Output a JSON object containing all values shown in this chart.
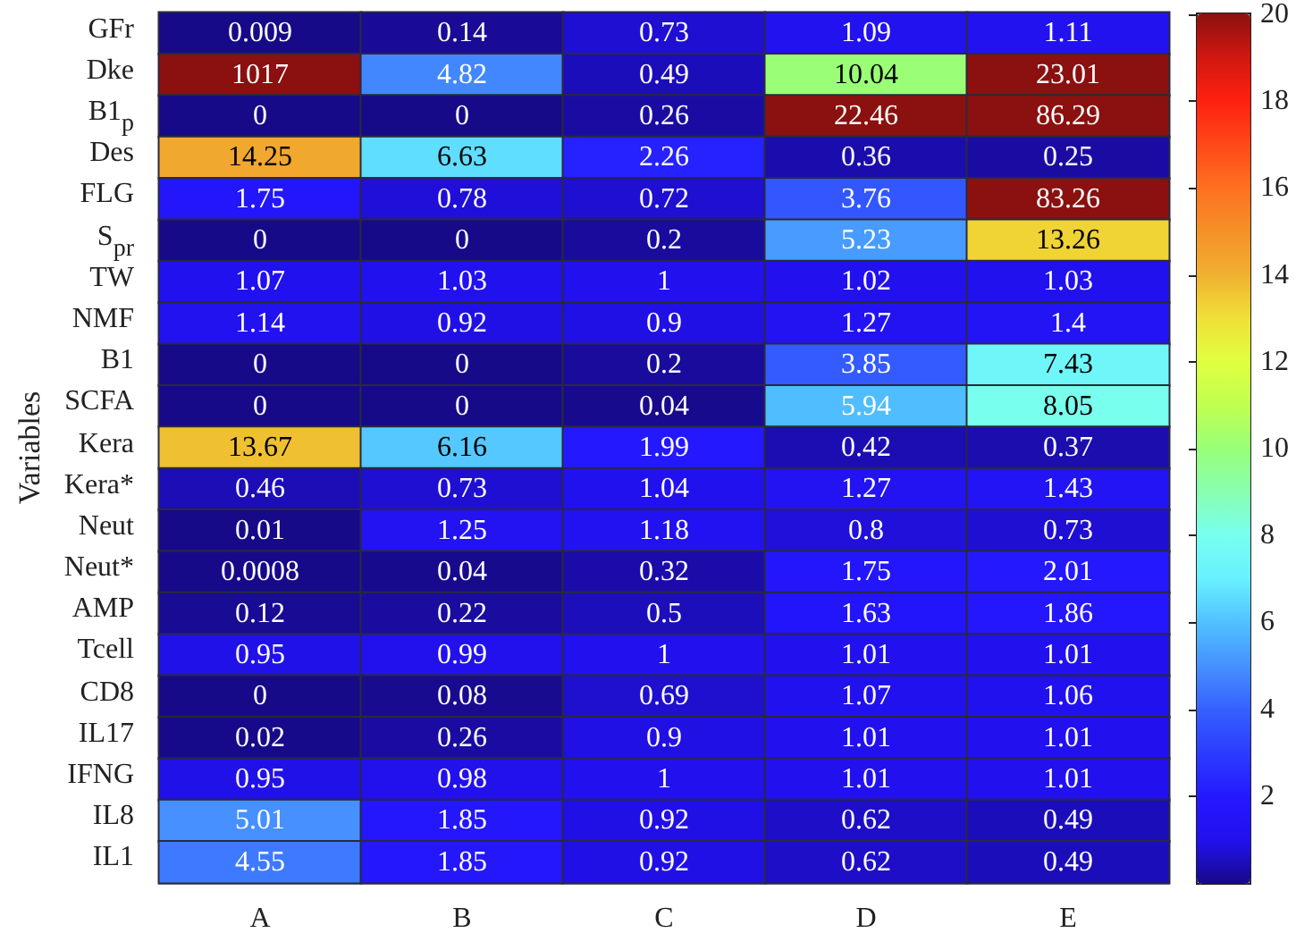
{
  "chart_data": {
    "type": "heatmap",
    "ylabel": "Variables",
    "categories": [
      "A",
      "B",
      "C",
      "D",
      "E"
    ],
    "y_categories": [
      "GFr",
      "Dke",
      "B1$_{p}$",
      "Des",
      "FLG",
      "S$_{pr}$",
      "TW",
      "NMF",
      "B1",
      "SCFA",
      "Kera",
      "Kera*",
      "Neut",
      "Neut*",
      "AMP",
      "Tcell",
      "CD8",
      "IL17",
      "IFNG",
      "IL8",
      "IL1"
    ],
    "cells": [
      [
        0.009,
        0.14,
        0.73,
        1.09,
        1.11
      ],
      [
        1017,
        4.82,
        0.49,
        10.04,
        23.01
      ],
      [
        0,
        0,
        0.26,
        22.46,
        86.29
      ],
      [
        14.25,
        6.63,
        2.26,
        0.36,
        0.25
      ],
      [
        1.75,
        0.78,
        0.72,
        3.76,
        83.26
      ],
      [
        0,
        0,
        0.2,
        5.23,
        13.26
      ],
      [
        1.07,
        1.03,
        1,
        1.02,
        1.03
      ],
      [
        1.14,
        0.92,
        0.9,
        1.27,
        1.4
      ],
      [
        0,
        0,
        0.2,
        3.85,
        7.43
      ],
      [
        0,
        0,
        0.04,
        5.94,
        8.05
      ],
      [
        13.67,
        6.16,
        1.99,
        0.42,
        0.37
      ],
      [
        0.46,
        0.73,
        1.04,
        1.27,
        1.43
      ],
      [
        0.01,
        1.25,
        1.18,
        0.8,
        0.73
      ],
      [
        0.0008,
        0.04,
        0.32,
        1.75,
        2.01
      ],
      [
        0.12,
        0.22,
        0.5,
        1.63,
        1.86
      ],
      [
        0.95,
        0.99,
        1,
        1.01,
        1.01
      ],
      [
        0,
        0.08,
        0.69,
        1.07,
        1.06
      ],
      [
        0.02,
        0.26,
        0.9,
        1.01,
        1.01
      ],
      [
        0.95,
        0.98,
        1,
        1.01,
        1.01
      ],
      [
        5.01,
        1.85,
        0.92,
        0.62,
        0.49
      ],
      [
        4.55,
        1.85,
        0.92,
        0.62,
        0.49
      ]
    ],
    "clim": [
      0,
      20
    ],
    "cticks": [
      2,
      4,
      6,
      8,
      10,
      12,
      14,
      16,
      18,
      20
    ],
    "data_labels": true
  }
}
